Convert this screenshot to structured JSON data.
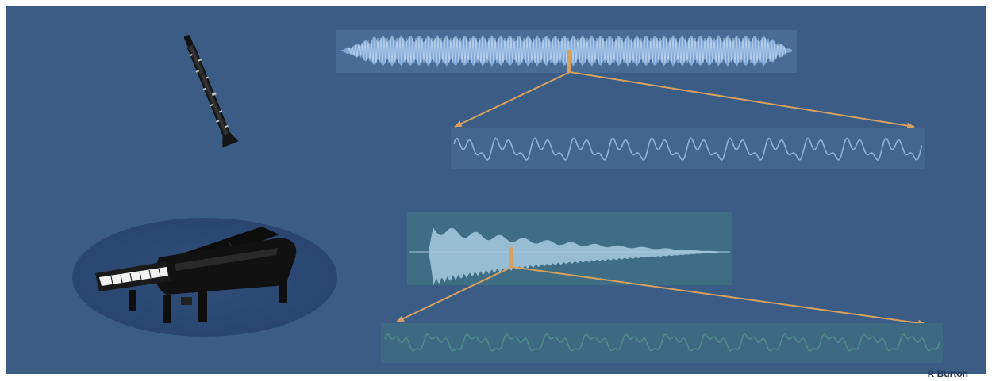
{
  "credit": "R Burton",
  "colors": {
    "background": "#3b5d85",
    "clarinet_wave": "#9fc3ea",
    "piano_wave": "#a7cbe0",
    "piano_detail_wave": "#4f8c8a",
    "arrow": "#d6a061"
  },
  "icons": {
    "clarinet": "clarinet-icon",
    "piano": "grand-piano-icon"
  }
}
